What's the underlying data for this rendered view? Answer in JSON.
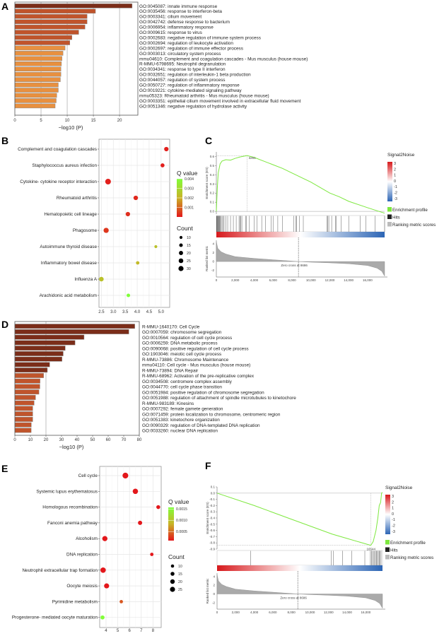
{
  "colors": {
    "dark": "#7b2d19",
    "mid": "#c0542b",
    "light": "#e8903f",
    "es_line": "#7ee83f",
    "q_low": "#e3171b",
    "q_mid": "#c9b226",
    "q_high": "#80ff3a",
    "s2n_pos": "#d7191c",
    "s2n_neg": "#2c65b5"
  },
  "chart_data": [
    {
      "panel": "A",
      "type": "bar",
      "orientation": "horizontal",
      "xlabel": "−log10 (P)",
      "xlim": [
        0,
        23.5
      ],
      "xticks": [
        0,
        5,
        10,
        15,
        20
      ],
      "grid": true,
      "categories": [
        "GO:0045087: innate immune response",
        "GO:0035456: response to interferon-beta",
        "GO:0003341: cilium movement",
        "GO:0042742: defense response to bacterium",
        "GO:0006954: inflammatory response",
        "GO:0009615: response to virus",
        "GO:0002683: negative regulation of immune system process",
        "GO:0002694: regulation of leukocyte activation",
        "GO:0002697: regulation of immune effector process",
        "GO:0003013: circulatory system process",
        "mmu04610: Complement and coagulation cascades - Mus musculus (house mouse)",
        "R-MMU-6798695: Neutrophil degranulation",
        "GO:0034341: response to type II interferon",
        "GO:0032651: regulation of interleukin-1 beta production",
        "GO:0044057: regulation of system process",
        "GO:0050727: regulation of inflammatory response",
        "GO:0019221: cytokine-mediated signaling pathway",
        "mmu05323: Rheumatoid arthritis - Mus musculus (house mouse)",
        "GO:0003351: epithelial cilium movement involved in extracellular fluid movement",
        "GO:0051346: negative regulation of hydrolase activity"
      ],
      "values": [
        22.4,
        15.4,
        13.8,
        13.8,
        13.4,
        12.2,
        10.9,
        10.5,
        9.6,
        9.2,
        9.0,
        8.9,
        8.8,
        8.8,
        8.7,
        8.3,
        8.3,
        8.0,
        7.9,
        7.7
      ],
      "color_groups": [
        "dark",
        "mid",
        "mid",
        "mid",
        "mid",
        "mid",
        "mid",
        "mid",
        "light",
        "light",
        "light",
        "light",
        "light",
        "light",
        "light",
        "light",
        "light",
        "light",
        "light",
        "light"
      ]
    },
    {
      "panel": "B",
      "type": "scatter",
      "xlim": [
        2.4,
        5.36
      ],
      "xticks": [
        2.5,
        3.0,
        3.5,
        4.0,
        4.5,
        5.0
      ],
      "grid": true,
      "categories": [
        "Complement and coagulation cascades",
        "Staphylococcus aureus infection",
        "Cytokine- cytokine receptor interaction",
        "Rheumatoid arthritis",
        "Hematopoietic cell lineage",
        "Phagosome",
        "Autoimmune thyroid disease",
        "Inflammatory bowel disease",
        "Influenza A",
        "Arachidonic acid metabolism"
      ],
      "x": [
        5.22,
        5.06,
        2.78,
        3.94,
        3.61,
        2.7,
        4.78,
        4.02,
        2.5,
        3.63
      ],
      "count": [
        18,
        15,
        30,
        19,
        18,
        25,
        8,
        11,
        20,
        12
      ],
      "q": [
        0.0001,
        0.0001,
        0.0001,
        0.0002,
        0.0003,
        0.0004,
        0.0024,
        0.0022,
        0.0024,
        0.004
      ],
      "q_legend": {
        "title": "Q value",
        "range": [
          0.0,
          0.004
        ],
        "ticks": [
          0.001,
          0.002,
          0.003,
          0.004
        ],
        "tick_labels": [
          "0.001",
          "0.002",
          "0.003",
          "0.004"
        ]
      },
      "count_legend": {
        "title": "Count",
        "values": [
          10,
          15,
          20,
          25,
          30
        ]
      }
    },
    {
      "panel": "C",
      "type": "line",
      "ylabel": "Enrichment score (ES)",
      "ylim": [
        -0.03,
        0.65
      ],
      "yticks": [
        0,
        0.1,
        0.2,
        0.3,
        0.4,
        0.5,
        0.6
      ],
      "xlim": [
        0,
        17800
      ],
      "xticks": [
        0,
        2000,
        4000,
        6000,
        8000,
        10000,
        12000,
        14000,
        16000
      ],
      "es": [
        [
          0,
          0
        ],
        [
          100,
          0.25
        ],
        [
          200,
          0.42
        ],
        [
          400,
          0.52
        ],
        [
          600,
          0.55
        ],
        [
          1000,
          0.565
        ],
        [
          1500,
          0.56
        ],
        [
          2000,
          0.58
        ],
        [
          2500,
          0.595
        ],
        [
          3261,
          0.61
        ],
        [
          4000,
          0.59
        ],
        [
          5000,
          0.55
        ],
        [
          6000,
          0.51
        ],
        [
          7000,
          0.47
        ],
        [
          8000,
          0.42
        ],
        [
          10000,
          0.32
        ],
        [
          12000,
          0.2
        ],
        [
          13000,
          0.16
        ],
        [
          14000,
          0.11
        ],
        [
          16000,
          0.04
        ],
        [
          17800,
          -0.02
        ]
      ],
      "peak_x": 3261,
      "peak_label": "3261",
      "hits": [
        20,
        60,
        100,
        150,
        200,
        250,
        300,
        350,
        420,
        500,
        600,
        700,
        820,
        1000,
        1200,
        1500,
        1800,
        2100,
        2400,
        2500,
        2600,
        2700,
        3100,
        3200,
        3500,
        4000,
        4300,
        4800,
        5200,
        5800,
        6000,
        6500,
        7000,
        8200,
        8400,
        8500,
        8800,
        9200,
        11700,
        11800,
        11900,
        12200,
        12600,
        12700,
        13200,
        14000,
        15200,
        15800,
        16800,
        17800
      ],
      "metric_ylabel": "Ranked list metric",
      "metric_yticks": [
        -2,
        0,
        2,
        4
      ],
      "metric_ylim": [
        -3.5,
        4.8
      ],
      "ranked_metric": [
        [
          0,
          4.5
        ],
        [
          150,
          3
        ],
        [
          500,
          2.2
        ],
        [
          1000,
          1.7
        ],
        [
          2000,
          1.1
        ],
        [
          4000,
          0.7
        ],
        [
          6000,
          0.4
        ],
        [
          8686,
          0
        ],
        [
          10000,
          -0.15
        ],
        [
          12000,
          -0.3
        ],
        [
          14000,
          -0.5
        ],
        [
          16000,
          -0.9
        ],
        [
          17000,
          -1.5
        ],
        [
          17500,
          -2.2
        ],
        [
          17800,
          -3.3
        ]
      ],
      "zero_cross": 8686,
      "zero_cross_label": "Zero cross at 8686",
      "legend": {
        "colorbar_title": "Signal2Noise",
        "colorbar_ticks": [
          "3",
          "2",
          "1",
          "0",
          "-1",
          "-2",
          "-3"
        ],
        "entries": [
          "Enrichment profile",
          "Hits",
          "Ranking metric scores"
        ]
      }
    },
    {
      "panel": "D",
      "type": "bar",
      "orientation": "horizontal",
      "xlabel": "−log10 (P)",
      "xlim": [
        0,
        80
      ],
      "xticks": [
        0,
        10,
        20,
        30,
        40,
        50,
        60,
        70,
        80
      ],
      "grid": true,
      "categories": [
        "R-MMU-1640170: Cell Cycle",
        "GO:0007059: chromosome segregation",
        "GO:0010564: regulation of cell cycle process",
        "GO:0006259: DNA metabolic process",
        "GO:0090068: positive regulation of cell cycle process",
        "GO:1903046: meiotic cell cycle process",
        "R-MMU-73886: Chromosome Maintenance",
        "mmu04110: Cell cycle - Mus musculus (house mouse)",
        "R-MMU-73894: DNA Repair",
        "R-MMU-68962: Activation of the pre-replicative complex",
        "GO:0034508: centromere complex assembly",
        "GO:0044770: cell cycle phase transition",
        "GO:0051984: positive regulation of chromosome segregation",
        "GO:0051988: regulation of attachment of spindle microtubules to kinetochore",
        "R-MMU-983189: Kinesins",
        "GO:0007292: female gamete generation",
        "GO:0071459: protein localization to chromosome, centromeric region",
        "GO:0051383: kinetochore organization",
        "GO:0090329: regulation of DNA-templated DNA replication",
        "GO:0033260: nuclear DNA replication"
      ],
      "values": [
        77.1,
        73.3,
        44.5,
        38.7,
        32.4,
        31.1,
        30.3,
        22.4,
        20.9,
        18.5,
        16.2,
        16.1,
        15.5,
        13.3,
        12.4,
        11.5,
        11.5,
        11.5,
        10.6,
        10.5
      ],
      "color_groups": [
        "dark",
        "dark",
        "dark",
        "dark",
        "dark",
        "dark",
        "dark",
        "dark",
        "dark",
        "mid",
        "mid",
        "mid",
        "mid",
        "mid",
        "mid",
        "mid",
        "mid",
        "mid",
        "mid",
        "mid"
      ]
    },
    {
      "panel": "E",
      "type": "scatter",
      "xlim": [
        3.46,
        8.7
      ],
      "xticks": [
        4,
        5,
        6,
        7,
        8
      ],
      "grid": true,
      "categories": [
        "Cell cycle",
        "Systemic lupus erythematosus",
        "Homologous recombination",
        "Fanconi anemia pathway",
        "Alcoholism",
        "DNA replication",
        "Neutrophil extracellular trap formation",
        "Oocyte meiosis",
        "Pyrimidine metabolism",
        "Progesterone- mediated oocyte maturation"
      ],
      "x": [
        5.65,
        6.5,
        8.45,
        6.9,
        3.9,
        7.9,
        3.75,
        4.05,
        5.3,
        3.7
      ],
      "count": [
        26,
        22,
        12,
        14,
        21,
        9,
        23,
        20,
        9,
        13
      ],
      "q": [
        0.0001,
        0.0001,
        0.0001,
        0.0001,
        0.0001,
        0.0001,
        0.0001,
        0.0001,
        0.0004,
        0.00155
      ],
      "q_legend": {
        "title": "Q value",
        "range": [
          0.0001,
          0.00157
        ],
        "ticks": [
          0.0005,
          0.001,
          0.0015
        ],
        "tick_labels": [
          "0.0005",
          "0.0010",
          "0.0015"
        ]
      },
      "count_legend": {
        "title": "Count",
        "values": [
          10,
          15,
          20,
          25
        ]
      }
    },
    {
      "panel": "F",
      "type": "line",
      "ylabel": "Enrichment score (ES)",
      "ylim": [
        -0.9,
        0.1
      ],
      "yticks": [
        -0.9,
        -0.8,
        -0.7,
        -0.6,
        -0.5,
        -0.4,
        -0.3,
        -0.2,
        -0.1,
        0,
        0.1
      ],
      "xlim": [
        0,
        17800
      ],
      "xticks": [
        0,
        2000,
        4000,
        6000,
        8000,
        10000,
        12000,
        14000,
        16000
      ],
      "es": [
        [
          0,
          0
        ],
        [
          4000,
          -0.2
        ],
        [
          8000,
          -0.42
        ],
        [
          12400,
          -0.66
        ],
        [
          14000,
          -0.73
        ],
        [
          16544,
          -0.84
        ],
        [
          16800,
          -0.78
        ],
        [
          17100,
          -0.6
        ],
        [
          17300,
          -0.4
        ],
        [
          17450,
          -0.2
        ],
        [
          17600,
          -0.15
        ],
        [
          17700,
          0.0
        ],
        [
          17800,
          0.01
        ]
      ],
      "peak_x": 16544,
      "peak_label": "16544",
      "hits": [
        3600,
        12300,
        12500,
        13500,
        14500,
        15900,
        16500,
        16600,
        16700,
        16850,
        16950,
        17050,
        17150,
        17250,
        17350,
        17450,
        17550,
        17650
      ],
      "metric_ylabel": "Ranked list metric",
      "metric_yticks": [
        -2,
        0,
        2,
        4
      ],
      "metric_ylim": [
        -3.5,
        4.8
      ],
      "ranked_metric": [
        [
          0,
          4.5
        ],
        [
          150,
          3
        ],
        [
          500,
          2.2
        ],
        [
          1000,
          1.7
        ],
        [
          2000,
          1.1
        ],
        [
          4000,
          0.7
        ],
        [
          6000,
          0.4
        ],
        [
          8686,
          0
        ],
        [
          10000,
          -0.15
        ],
        [
          12000,
          -0.3
        ],
        [
          14000,
          -0.5
        ],
        [
          16000,
          -0.9
        ],
        [
          17000,
          -1.5
        ],
        [
          17500,
          -2.2
        ],
        [
          17800,
          -3.3
        ]
      ],
      "zero_cross": 8686,
      "zero_cross_label": "Zero cross at 8686",
      "legend": {
        "colorbar_title": "Signal2Noise",
        "colorbar_ticks": [
          "3",
          "2",
          "1",
          "0",
          "-1",
          "-2",
          "-3"
        ],
        "entries": [
          "Enrichment profile",
          "Hits",
          "Ranking metric scores"
        ]
      }
    }
  ]
}
